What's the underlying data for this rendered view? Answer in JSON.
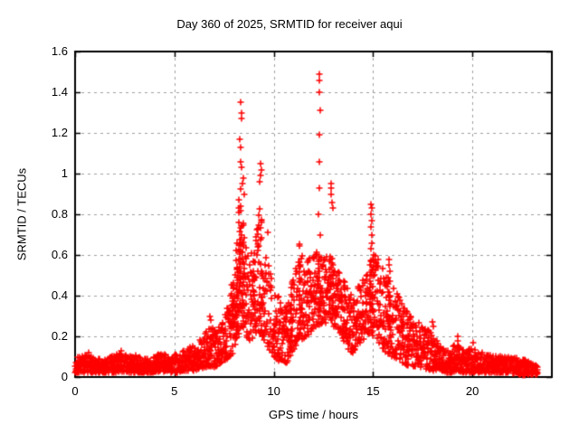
{
  "chart_data": {
    "type": "scatter",
    "title": "Day 360 of 2025, SRMTID for receiver aqui",
    "xlabel": "GPS time / hours",
    "ylabel": "SRMTID / TECUs",
    "xlim": [
      0,
      24
    ],
    "ylim": [
      0,
      1.6
    ],
    "xtick_values": [
      0,
      5,
      10,
      15,
      20
    ],
    "xtick_labels": [
      "0",
      "5",
      "10",
      "15",
      "20"
    ],
    "ytick_values": [
      0,
      0.2,
      0.4,
      0.6,
      0.8,
      1,
      1.2,
      1.4,
      1.6
    ],
    "ytick_labels": [
      "0",
      "0.2",
      "0.4",
      "0.6",
      "0.8",
      "1",
      "1.2",
      "1.4",
      "1.6"
    ],
    "grid": true,
    "legend": "none",
    "marker": {
      "shape": "plus",
      "size": 7,
      "stroke_width": 1.5
    },
    "colors": {
      "data": "#ff0000",
      "grid": "#a0a0a0",
      "axis": "#000000",
      "background": "#ffffff",
      "text": "#000000"
    },
    "series_name": "SRMTID",
    "band_envelope_h_lo_hi": [
      [
        0,
        0.02,
        0.1
      ],
      [
        0.7,
        0.02,
        0.11
      ],
      [
        1,
        0.02,
        0.09
      ],
      [
        1.5,
        0.02,
        0.09
      ],
      [
        2,
        0.02,
        0.11
      ],
      [
        2.3,
        0.03,
        0.12
      ],
      [
        2.7,
        0.02,
        0.1
      ],
      [
        3,
        0.02,
        0.11
      ],
      [
        3.5,
        0.02,
        0.09
      ],
      [
        4,
        0.02,
        0.1
      ],
      [
        4.3,
        0.03,
        0.12
      ],
      [
        4.7,
        0.02,
        0.1
      ],
      [
        5,
        0.02,
        0.11
      ],
      [
        5.5,
        0.03,
        0.13
      ],
      [
        6,
        0.03,
        0.16
      ],
      [
        6.4,
        0.04,
        0.19
      ],
      [
        6.8,
        0.05,
        0.26
      ],
      [
        7.1,
        0.05,
        0.22
      ],
      [
        7.5,
        0.08,
        0.3
      ],
      [
        7.9,
        0.11,
        0.42
      ],
      [
        8.1,
        0.15,
        0.65
      ],
      [
        8.35,
        0.25,
        1.0
      ],
      [
        8.55,
        0.22,
        0.78
      ],
      [
        8.8,
        0.17,
        0.6
      ],
      [
        9.05,
        0.2,
        0.68
      ],
      [
        9.35,
        0.22,
        0.92
      ],
      [
        9.55,
        0.18,
        0.6
      ],
      [
        9.8,
        0.13,
        0.55
      ],
      [
        10.1,
        0.09,
        0.44
      ],
      [
        10.45,
        0.06,
        0.34
      ],
      [
        10.75,
        0.08,
        0.38
      ],
      [
        11.05,
        0.15,
        0.52
      ],
      [
        11.35,
        0.18,
        0.66
      ],
      [
        11.65,
        0.2,
        0.57
      ],
      [
        11.95,
        0.23,
        0.6
      ],
      [
        12.25,
        0.26,
        0.66
      ],
      [
        12.55,
        0.25,
        0.58
      ],
      [
        12.85,
        0.27,
        0.62
      ],
      [
        13.1,
        0.24,
        0.55
      ],
      [
        13.4,
        0.2,
        0.5
      ],
      [
        13.7,
        0.14,
        0.44
      ],
      [
        14,
        0.11,
        0.4
      ],
      [
        14.3,
        0.16,
        0.46
      ],
      [
        14.6,
        0.19,
        0.52
      ],
      [
        14.9,
        0.22,
        0.62
      ],
      [
        15.15,
        0.18,
        0.6
      ],
      [
        15.45,
        0.14,
        0.54
      ],
      [
        15.8,
        0.11,
        0.5
      ],
      [
        16.1,
        0.09,
        0.44
      ],
      [
        16.5,
        0.07,
        0.36
      ],
      [
        16.9,
        0.05,
        0.3
      ],
      [
        17.3,
        0.05,
        0.27
      ],
      [
        17.7,
        0.04,
        0.24
      ],
      [
        18,
        0.03,
        0.21
      ],
      [
        18.4,
        0.03,
        0.15
      ],
      [
        18.8,
        0.02,
        0.13
      ],
      [
        19.2,
        0.03,
        0.17
      ],
      [
        19.6,
        0.02,
        0.13
      ],
      [
        20,
        0.02,
        0.14
      ],
      [
        20.5,
        0.02,
        0.12
      ],
      [
        21,
        0.02,
        0.11
      ],
      [
        21.5,
        0.02,
        0.1
      ],
      [
        22,
        0.02,
        0.1
      ],
      [
        22.5,
        0.01,
        0.09
      ],
      [
        23,
        0.01,
        0.07
      ],
      [
        23.3,
        0.01,
        0.05
      ]
    ],
    "spike_points_h_v": [
      [
        8.33,
        1.35
      ],
      [
        8.36,
        1.3
      ],
      [
        8.36,
        1.27
      ],
      [
        8.31,
        1.17
      ],
      [
        8.34,
        1.13
      ],
      [
        8.35,
        1.06
      ],
      [
        8.38,
        1.03
      ],
      [
        8.45,
        0.98
      ],
      [
        8.42,
        0.95
      ],
      [
        8.52,
        0.9
      ],
      [
        9.33,
        1.05
      ],
      [
        9.37,
        1.02
      ],
      [
        9.35,
        0.99
      ],
      [
        9.3,
        0.96
      ],
      [
        9.7,
        0.71
      ],
      [
        12.28,
        1.49
      ],
      [
        12.3,
        1.46
      ],
      [
        12.29,
        1.4
      ],
      [
        12.32,
        1.31
      ],
      [
        12.28,
        1.19
      ],
      [
        12.31,
        1.06
      ],
      [
        12.3,
        0.93
      ],
      [
        12.27,
        0.8
      ],
      [
        12.33,
        0.7
      ],
      [
        12.88,
        0.95
      ],
      [
        12.91,
        0.93
      ],
      [
        12.9,
        0.9
      ],
      [
        12.95,
        0.86
      ],
      [
        13.0,
        0.83
      ],
      [
        14.9,
        0.85
      ],
      [
        14.93,
        0.83
      ],
      [
        14.91,
        0.8
      ],
      [
        14.94,
        0.77
      ],
      [
        14.9,
        0.74
      ],
      [
        14.92,
        0.7
      ],
      [
        14.95,
        0.66
      ],
      [
        14.88,
        0.63
      ],
      [
        15.02,
        0.6
      ],
      [
        15.78,
        0.58
      ],
      [
        15.81,
        0.55
      ],
      [
        15.83,
        0.52
      ],
      [
        17.98,
        0.27
      ],
      [
        18.03,
        0.25
      ],
      [
        6.8,
        0.3
      ],
      [
        6.83,
        0.28
      ],
      [
        0.7,
        0.12
      ],
      [
        2.32,
        0.13
      ],
      [
        19.25,
        0.2
      ],
      [
        19.28,
        0.18
      ],
      [
        20.02,
        0.17
      ]
    ],
    "dense_columns_h_lo_hi_n": [
      [
        8.3,
        0.3,
        0.95,
        26
      ],
      [
        8.45,
        0.28,
        0.8,
        20
      ],
      [
        8.15,
        0.18,
        0.62,
        16
      ],
      [
        9.0,
        0.22,
        0.64,
        14
      ],
      [
        9.35,
        0.25,
        0.88,
        18
      ],
      [
        11.35,
        0.22,
        0.66,
        14
      ],
      [
        12.3,
        0.3,
        0.64,
        14
      ],
      [
        12.9,
        0.3,
        0.6,
        12
      ],
      [
        14.9,
        0.25,
        0.6,
        18
      ],
      [
        15.8,
        0.14,
        0.5,
        12
      ],
      [
        7.95,
        0.12,
        0.5,
        12
      ],
      [
        10.9,
        0.1,
        0.36,
        10
      ]
    ],
    "sampling": {
      "x_start": 0,
      "x_end": 23.3,
      "dt_hours": 0.012,
      "seed": 7,
      "skew": 1.45,
      "extra_point_prob": 0.33,
      "extra_point_skew": 0.75
    }
  }
}
